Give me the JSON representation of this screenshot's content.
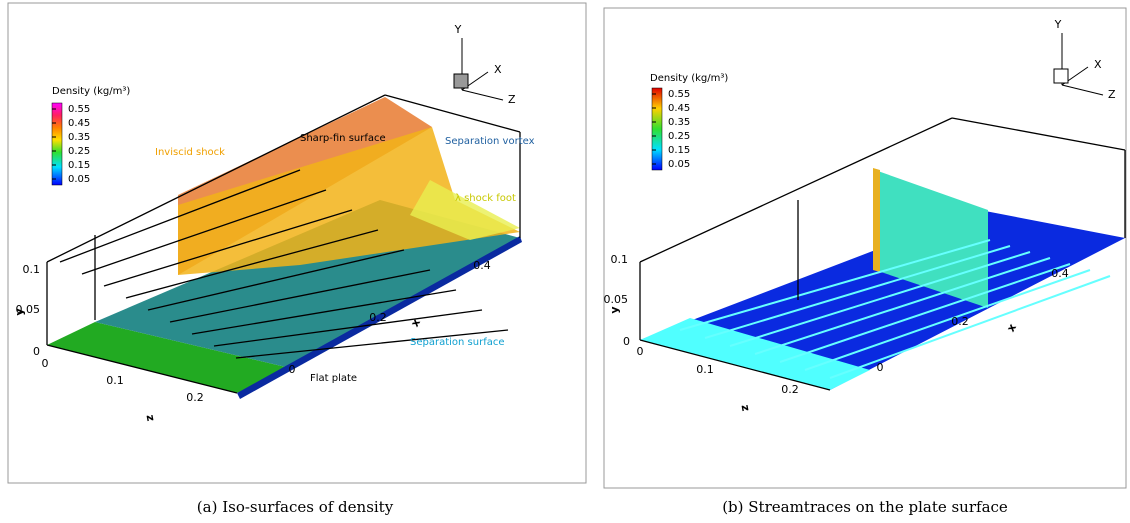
{
  "panels": [
    {
      "caption": "(a) Iso-surfaces of density",
      "legend": {
        "title": "Density (kg/m³)",
        "levels": [
          0.55,
          0.45,
          0.35,
          0.25,
          0.15,
          0.05
        ]
      },
      "triad": {
        "y": "Y",
        "x": "X",
        "z": "Z"
      },
      "axes": {
        "y_label": "y",
        "y_ticks": [
          0.1,
          0.05,
          0
        ],
        "z_label": "z",
        "z_ticks": [
          0,
          0.1,
          0.2
        ],
        "x_label": "x",
        "x_ticks": [
          0,
          0.2,
          0.4
        ]
      },
      "annotations": [
        "Sharp-fin surface",
        "Inviscid shock",
        "Separation vortex",
        "λ shock foot",
        "Separation surface",
        "Flat plate"
      ]
    },
    {
      "caption": "(b) Streamtraces on the plate surface",
      "legend": {
        "title": "Density (kg/m³)",
        "levels": [
          0.55,
          0.45,
          0.35,
          0.25,
          0.15,
          0.05
        ]
      },
      "triad": {
        "y": "Y",
        "x": "X",
        "z": "Z"
      },
      "axes": {
        "y_label": "y",
        "y_ticks": [
          0.1,
          0.05,
          0
        ],
        "z_label": "z",
        "z_ticks": [
          0,
          0.1,
          0.2
        ],
        "x_label": "x",
        "x_ticks": [
          0,
          0.2,
          0.4
        ]
      },
      "annotations": []
    }
  ]
}
